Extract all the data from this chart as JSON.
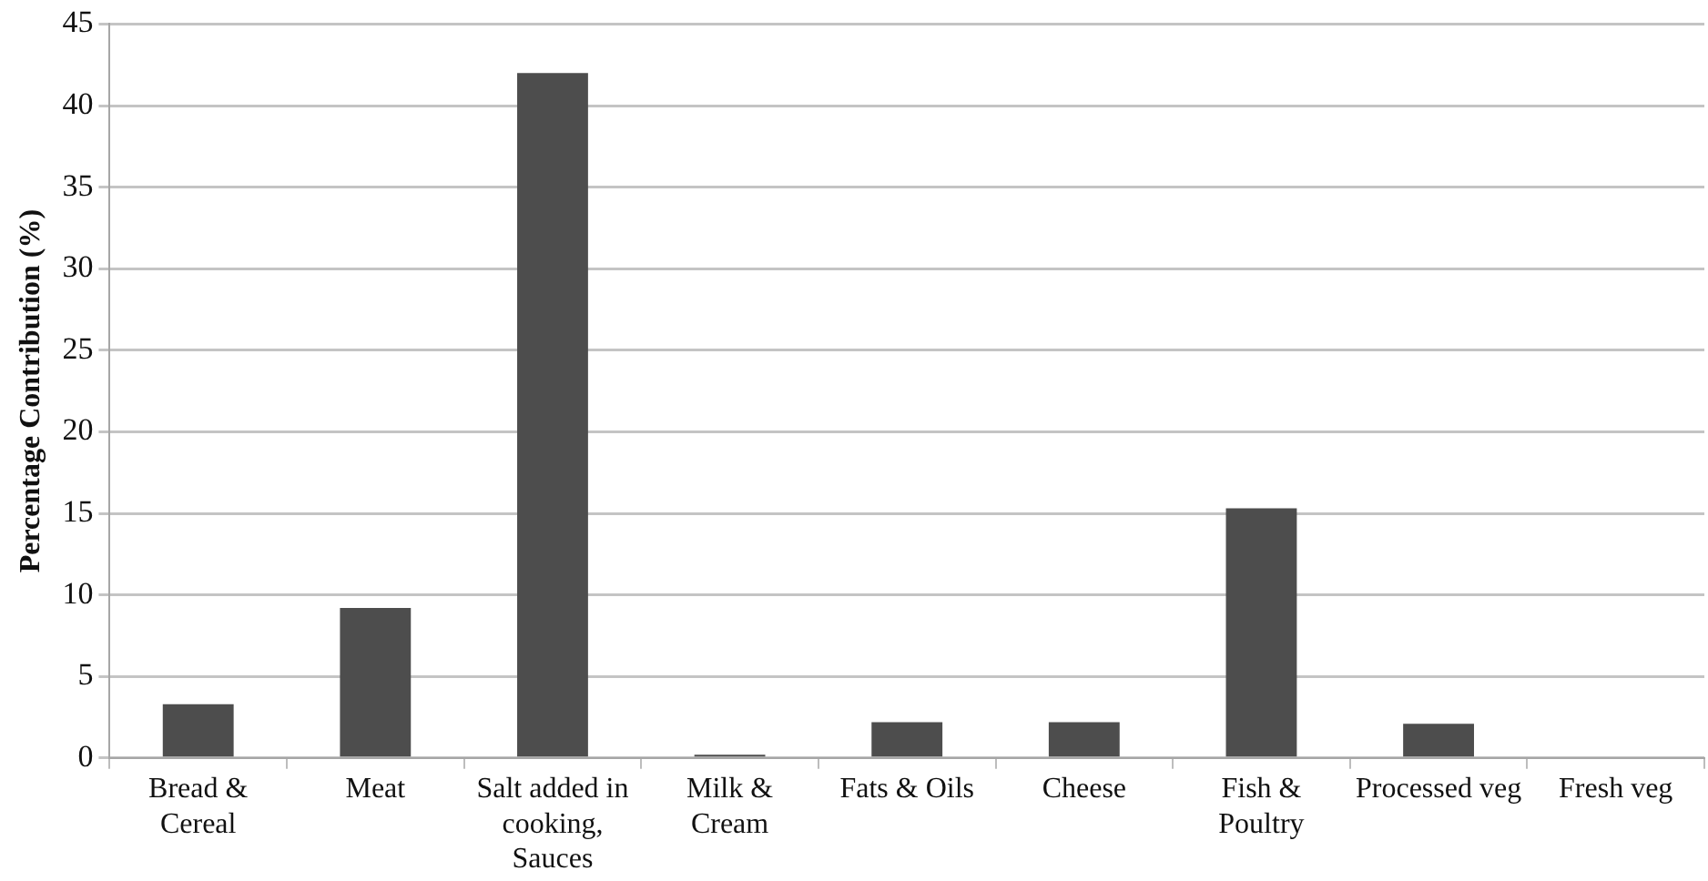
{
  "chart_data": {
    "type": "bar",
    "ylabel": "Percentage Contribution (%)",
    "categories": [
      "Bread & Cereal",
      "Meat",
      "Salt added in cooking, Sauces",
      "Milk & Cream",
      "Fats & Oils",
      "Cheese",
      "Fish & Poultry",
      "Processed veg",
      "Fresh veg"
    ],
    "values": [
      3.3,
      9.2,
      42,
      0.2,
      2.2,
      2.2,
      15.3,
      2.1,
      0
    ],
    "color": "#4d4d4d",
    "ylim": [
      0,
      45
    ],
    "yticks": [
      0,
      5,
      10,
      15,
      20,
      25,
      30,
      35,
      40,
      45
    ],
    "grid": "y",
    "legend": false
  }
}
